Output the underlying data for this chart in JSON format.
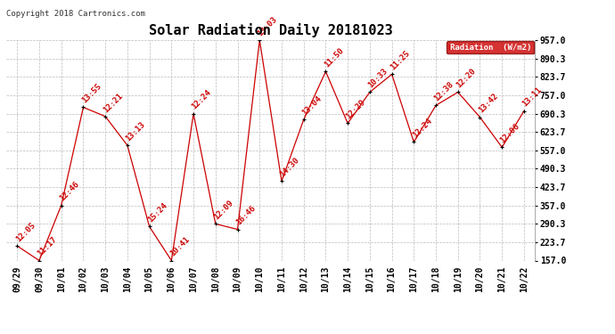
{
  "title": "Solar Radiation Daily 20181023",
  "copyright": "Copyright 2018 Cartronics.com",
  "legend_label": "Radiation  (W/m2)",
  "x_labels": [
    "09/29",
    "09/30",
    "10/01",
    "10/02",
    "10/03",
    "10/04",
    "10/05",
    "10/06",
    "10/07",
    "10/08",
    "10/09",
    "10/10",
    "10/11",
    "10/12",
    "10/13",
    "10/14",
    "10/15",
    "10/16",
    "10/17",
    "10/18",
    "10/19",
    "10/20",
    "10/21",
    "10/22"
  ],
  "y_values": [
    210,
    157,
    357,
    713,
    680,
    575,
    280,
    157,
    690,
    290,
    270,
    957,
    445,
    668,
    843,
    655,
    768,
    833,
    587,
    720,
    768,
    677,
    568,
    700
  ],
  "time_labels": [
    "12:05",
    "11:17",
    "12:46",
    "13:55",
    "12:21",
    "13:13",
    "15:24",
    "10:41",
    "12:24",
    "12:09",
    "16:46",
    "13:03",
    "14:30",
    "13:04",
    "11:50",
    "12:29",
    "10:33",
    "11:25",
    "12:24",
    "12:38",
    "12:20",
    "13:42",
    "12:06",
    "13:11"
  ],
  "ylim_min": 157.0,
  "ylim_max": 957.0,
  "yticks": [
    157.0,
    223.7,
    290.3,
    357.0,
    423.7,
    490.3,
    557.0,
    623.7,
    690.3,
    757.0,
    823.7,
    890.3,
    957.0
  ],
  "line_color": "#cc0000",
  "marker_color": "#000000",
  "bg_color": "#ffffff",
  "grid_color": "#bbbbbb",
  "legend_bg": "#cc0000",
  "legend_text_color": "#ffffff",
  "title_fontsize": 11,
  "label_fontsize": 6.5,
  "tick_fontsize": 7,
  "copyright_fontsize": 6.5
}
